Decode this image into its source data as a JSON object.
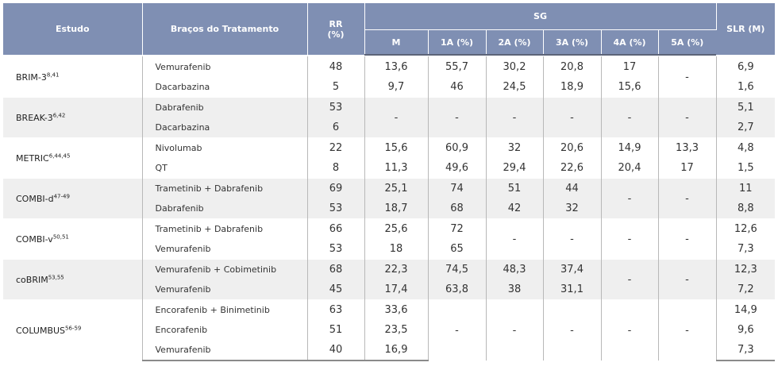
{
  "headers": {
    "estudo": "Estudo",
    "bracos": "Braços do Tratamento",
    "rr": "RR",
    "rr_unit": "(%)",
    "sg": "SG",
    "slr": "SLR (M)",
    "sub": [
      "M",
      "1A (%)",
      "2A (%)",
      "3A (%)",
      "4A (%)",
      "5A (%)"
    ]
  },
  "studies": [
    {
      "name": "BRIM-3",
      "refs": "8,41",
      "arms": [
        {
          "arm": "Vemurafenib",
          "rr": "48",
          "m": "13,6",
          "a1": "55,7",
          "a2": "30,2",
          "a3": "20,8",
          "a4": "17",
          "a5": "",
          "slr": "6,9"
        },
        {
          "arm": "Dacarbazina",
          "rr": "5",
          "m": "9,7",
          "a1": "46",
          "a2": "24,5",
          "a3": "18,9",
          "a4": "15,6",
          "a5": "",
          "slr": "1,6"
        }
      ],
      "merged_a5": "-"
    },
    {
      "name": "BREAK-3",
      "refs": "6,42",
      "arms": [
        {
          "arm": "Dabrafenib",
          "rr": "53",
          "slr": "5,1"
        },
        {
          "arm": "Dacarbazina",
          "rr": "6",
          "slr": "2,7"
        }
      ],
      "merged": {
        "m": "-",
        "a1": "-",
        "a2": "-",
        "a3": "-",
        "a4": "-",
        "a5": "-"
      }
    },
    {
      "name": "METRIC",
      "refs": "6,44,45",
      "arms": [
        {
          "arm": "Nivolumab",
          "rr": "22",
          "m": "15,6",
          "a1": "60,9",
          "a2": "32",
          "a3": "20,6",
          "a4": "14,9",
          "a5": "13,3",
          "slr": "4,8"
        },
        {
          "arm": "QT",
          "rr": "8",
          "m": "11,3",
          "a1": "49,6",
          "a2": "29,4",
          "a3": "22,6",
          "a4": "20,4",
          "a5": "17",
          "slr": "1,5"
        }
      ]
    },
    {
      "name": "COMBI-d",
      "refs": "47-49",
      "arms": [
        {
          "arm": "Trametinib + Dabrafenib",
          "rr": "69",
          "m": "25,1",
          "a1": "74",
          "a2": "51",
          "a3": "44",
          "slr": "11"
        },
        {
          "arm": "Dabrafenib",
          "rr": "53",
          "m": "18,7",
          "a1": "68",
          "a2": "42",
          "a3": "32",
          "slr": "8,8"
        }
      ],
      "merged": {
        "a4": "-",
        "a5": "-"
      }
    },
    {
      "name": "COMBI-v",
      "refs": "50,51",
      "arms": [
        {
          "arm": "Trametinib + Dabrafenib",
          "rr": "66",
          "m": "25,6",
          "a1": "72",
          "slr": "12,6"
        },
        {
          "arm": "Vemurafenib",
          "rr": "53",
          "m": "18",
          "a1": "65",
          "slr": "7,3"
        }
      ],
      "merged": {
        "a2": "-",
        "a3": "-",
        "a4": "-",
        "a5": "-"
      }
    },
    {
      "name": "coBRIM",
      "refs": "53,55",
      "arms": [
        {
          "arm": "Vemurafenib + Cobimetinib",
          "rr": "68",
          "m": "22,3",
          "a1": "74,5",
          "a2": "48,3",
          "a3": "37,4",
          "slr": "12,3"
        },
        {
          "arm": "Vemurafenib",
          "rr": "45",
          "m": "17,4",
          "a1": "63,8",
          "a2": "38",
          "a3": "31,1",
          "slr": "7,2"
        }
      ],
      "merged": {
        "a4": "-",
        "a5": "-"
      }
    },
    {
      "name": "COLUMBUS",
      "refs": "56-59",
      "arms": [
        {
          "arm": "Encorafenib + Binimetinib",
          "rr": "63",
          "m": "33,6",
          "slr": "14,9"
        },
        {
          "arm": "Encorafenib",
          "rr": "51",
          "m": "23,5",
          "slr": "9,6"
        },
        {
          "arm": "Vemurafenib",
          "rr": "40",
          "m": "16,9",
          "slr": "7,3"
        }
      ],
      "merged": {
        "a1": "-",
        "a2": "-",
        "a3": "-",
        "a4": "-",
        "a5": "-"
      }
    }
  ]
}
